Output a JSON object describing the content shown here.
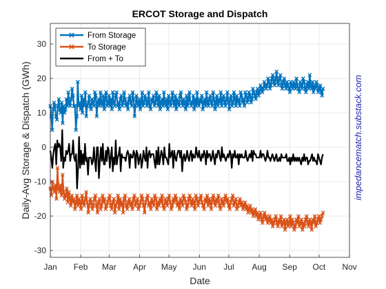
{
  "chart_data": {
    "type": "line",
    "title": "ERCOT Storage and Dispatch",
    "xlabel": "Date",
    "ylabel": "Daily-Avg Storage & Dispatch (GWh)",
    "side_label": "impedancematch.substack.com",
    "xlim": [
      "2024-01-01",
      "2024-11-01"
    ],
    "ylim": [
      -32,
      36
    ],
    "yticks": [
      -30,
      -20,
      -10,
      0,
      10,
      20,
      30
    ],
    "month_ticks": [
      {
        "label": "Jan",
        "date": "2024-01-01"
      },
      {
        "label": "Feb",
        "date": "2024-02-01"
      },
      {
        "label": "Mar",
        "date": "2024-03-01"
      },
      {
        "label": "Apr",
        "date": "2024-04-01"
      },
      {
        "label": "May",
        "date": "2024-05-01"
      },
      {
        "label": "Jun",
        "date": "2024-06-01"
      },
      {
        "label": "Jul",
        "date": "2024-07-01"
      },
      {
        "label": "Aug",
        "date": "2024-08-01"
      },
      {
        "label": "Sep",
        "date": "2024-09-01"
      },
      {
        "label": "Oct",
        "date": "2024-10-01"
      },
      {
        "label": "Nov",
        "date": "2024-11-01"
      }
    ],
    "grid": true,
    "legend_position": "top-left",
    "x_start": "2024-01-01",
    "x_end": "2024-10-05",
    "series": [
      {
        "name": "From Storage",
        "color": "#0072BD",
        "marker": "x",
        "values": [
          12,
          9,
          5,
          11,
          13,
          12,
          9,
          8,
          12,
          14,
          11,
          10,
          13,
          7,
          12,
          10,
          11,
          14,
          12,
          16,
          13,
          12,
          14,
          17,
          15,
          12,
          12,
          5,
          9,
          19,
          12,
          13,
          11,
          15,
          10,
          14,
          12,
          16,
          9,
          12,
          13,
          15,
          12,
          11,
          14,
          13,
          12,
          16,
          15,
          9,
          13,
          14,
          12,
          16,
          13,
          12,
          15,
          11,
          14,
          16,
          12,
          13,
          15,
          12,
          14,
          11,
          16,
          13,
          12,
          15,
          16,
          12,
          13,
          11,
          14,
          15,
          12,
          13,
          16,
          14,
          12,
          13,
          11,
          14,
          15,
          13,
          12,
          16,
          14,
          9,
          12,
          15,
          13,
          12,
          14,
          11,
          13,
          16,
          12,
          13,
          15,
          14,
          12,
          13,
          16,
          12,
          11,
          14,
          13,
          15,
          12,
          13,
          16,
          14,
          12,
          15,
          11,
          13,
          14,
          12,
          16,
          13,
          12,
          14,
          11,
          15,
          13,
          12,
          14,
          16,
          13,
          12,
          15,
          11,
          14,
          13,
          12,
          15,
          16,
          13,
          12,
          14,
          13,
          11,
          15,
          12,
          14,
          16,
          13,
          12,
          13,
          15,
          11,
          14,
          12,
          16,
          13,
          12,
          14,
          13,
          15,
          11,
          13,
          14,
          12,
          16,
          13,
          12,
          14,
          15,
          13,
          12,
          16,
          14,
          11,
          13,
          15,
          12,
          14,
          13,
          16,
          12,
          14,
          15,
          13,
          12,
          14,
          16,
          13,
          11,
          14,
          15,
          12,
          13,
          16,
          14,
          12,
          15,
          13,
          14,
          12,
          16,
          15,
          13,
          14,
          12,
          16,
          15,
          13,
          14,
          16,
          15,
          13,
          14,
          17,
          16,
          15,
          14,
          16,
          17,
          15,
          16,
          18,
          17,
          16,
          17,
          19,
          18,
          17,
          18,
          20,
          19,
          17,
          18,
          20,
          21,
          19,
          18,
          20,
          22,
          19,
          18,
          20,
          21,
          18,
          17,
          19,
          20,
          18,
          17,
          19,
          18,
          17,
          16,
          19,
          18,
          17,
          19,
          18,
          17,
          20,
          18,
          17,
          16,
          19,
          18,
          17,
          20,
          19,
          17,
          16,
          18,
          19,
          17,
          21,
          18,
          17,
          19,
          16,
          18,
          17,
          19,
          18,
          16,
          17,
          18,
          16,
          15,
          17
        ]
      },
      {
        "name": "To Storage",
        "color": "#D95319",
        "marker": "x",
        "values": [
          -12,
          -14,
          -10,
          -12,
          -13,
          -11,
          -15,
          -6,
          -12,
          -13,
          -11,
          -14,
          -8,
          -13,
          -15,
          -14,
          -12,
          -16,
          -13,
          -15,
          -17,
          -14,
          -16,
          -15,
          -18,
          -16,
          -14,
          -17,
          -15,
          -16,
          -18,
          -14,
          -16,
          -17,
          -15,
          -13,
          -16,
          -19,
          -17,
          -15,
          -16,
          -18,
          -17,
          -15,
          -14,
          -17,
          -19,
          -16,
          -15,
          -18,
          -17,
          -14,
          -16,
          -15,
          -18,
          -17,
          -16,
          -15,
          -14,
          -17,
          -18,
          -16,
          -15,
          -19,
          -17,
          -16,
          -14,
          -18,
          -15,
          -17,
          -16,
          -19,
          -15,
          -14,
          -17,
          -18,
          -16,
          -15,
          -17,
          -16,
          -18,
          -15,
          -14,
          -17,
          -16,
          -15,
          -18,
          -17,
          -16,
          -14,
          -15,
          -17,
          -19,
          -16,
          -15,
          -14,
          -17,
          -16,
          -18,
          -15,
          -16,
          -17,
          -14,
          -15,
          -18,
          -16,
          -17,
          -15,
          -16,
          -14,
          -17,
          -18,
          -15,
          -16,
          -17,
          -15,
          -14,
          -16,
          -18,
          -17,
          -15,
          -16,
          -14,
          -15,
          -17,
          -16,
          -18,
          -15,
          -16,
          -17,
          -14,
          -15,
          -16,
          -18,
          -17,
          -15,
          -14,
          -16,
          -17,
          -15,
          -16,
          -18,
          -14,
          -15,
          -17,
          -16,
          -15,
          -14,
          -16,
          -17,
          -18,
          -15,
          -16,
          -14,
          -17,
          -15,
          -16,
          -18,
          -15,
          -14,
          -16,
          -17,
          -15,
          -16,
          -14,
          -17,
          -18,
          -15,
          -16,
          -17,
          -15,
          -14,
          -16,
          -15,
          -17,
          -18,
          -16,
          -15,
          -14,
          -17,
          -16,
          -15,
          -18,
          -17,
          -16,
          -15,
          -17,
          -16,
          -18,
          -17,
          -16,
          -18,
          -17,
          -19,
          -18,
          -17,
          -19,
          -18,
          -20,
          -19,
          -18,
          -20,
          -19,
          -21,
          -20,
          -19,
          -21,
          -22,
          -20,
          -19,
          -21,
          -20,
          -22,
          -21,
          -20,
          -22,
          -21,
          -23,
          -22,
          -21,
          -20,
          -22,
          -23,
          -21,
          -22,
          -20,
          -23,
          -22,
          -21,
          -24,
          -22,
          -21,
          -23,
          -22,
          -20,
          -23,
          -21,
          -22,
          -24,
          -23,
          -21,
          -22,
          -20,
          -23,
          -22,
          -21,
          -24,
          -22,
          -23,
          -21,
          -20,
          -22,
          -23,
          -21,
          -22,
          -24,
          -21,
          -22,
          -20,
          -23,
          -22,
          -21,
          -20,
          -22,
          -21,
          -20,
          -19
        ]
      },
      {
        "name": "From + To",
        "color": "#000000",
        "marker": "none",
        "values": [
          -1,
          -3,
          -6,
          -2,
          0,
          1,
          -5,
          2,
          0,
          1,
          0,
          -4,
          5,
          -6,
          -3,
          -4,
          -1,
          -2,
          -1,
          1,
          -4,
          -2,
          -2,
          2,
          -3,
          -4,
          -2,
          -12,
          -6,
          3,
          -6,
          -1,
          -5,
          -2,
          -5,
          1,
          -4,
          -3,
          -8,
          -3,
          -3,
          -3,
          -5,
          -4,
          0,
          -4,
          -7,
          0,
          0,
          -9,
          -4,
          0,
          -4,
          1,
          -5,
          -5,
          -1,
          -4,
          0,
          -1,
          -6,
          -3,
          0,
          -7,
          -3,
          -5,
          2,
          -5,
          -3,
          -2,
          0,
          -7,
          -2,
          -3,
          -3,
          -3,
          -4,
          -2,
          -1,
          -2,
          -6,
          -2,
          -3,
          -3,
          -1,
          -2,
          -6,
          -1,
          -2,
          -5,
          -3,
          -2,
          -6,
          -4,
          -1,
          -3,
          -4,
          0,
          -6,
          -2,
          -1,
          -3,
          -2,
          -2,
          -2,
          -4,
          -6,
          -1,
          -5,
          0,
          -5,
          -3,
          -1,
          -2,
          -5,
          0,
          -3,
          -3,
          -4,
          -5,
          1,
          -3,
          -2,
          -1,
          -6,
          -1,
          -3,
          -4,
          -2,
          -1,
          -1,
          -3,
          -1,
          -7,
          -3,
          -2,
          -4,
          -3,
          -1,
          -3,
          -4,
          -2,
          -1,
          -4,
          -2,
          -3,
          -3,
          0,
          -2,
          -3,
          -1,
          -3,
          -4,
          -2,
          -3,
          -1,
          -2,
          -5,
          -1,
          -3,
          -2,
          -2,
          -4,
          -3,
          -1,
          -3,
          -5,
          -2,
          -3,
          -1,
          -1,
          -3,
          -4,
          0,
          -3,
          -2,
          -3,
          -4,
          -3,
          -2,
          -3,
          -1,
          -2,
          -6,
          -2,
          -3,
          -1,
          -3,
          -3,
          -2,
          -5,
          -2,
          -3,
          -2,
          -3,
          -3,
          -3,
          -1,
          -3,
          -4,
          -3,
          -2,
          -3,
          -1,
          -4,
          -1,
          -2,
          -2,
          -3,
          -3,
          -3,
          -3,
          -1,
          -3,
          -2,
          -2,
          -3,
          -4,
          -3,
          -1,
          -3,
          -3,
          -4,
          -3,
          -2,
          -3,
          -4,
          -3,
          -2,
          -4,
          -4,
          -3,
          -4,
          -2,
          -3,
          -3,
          -3,
          -3,
          -2,
          -4,
          -4,
          -3,
          -5,
          -3,
          -4,
          -2,
          -4,
          -3,
          -4,
          -3,
          -4,
          -3,
          -4,
          -5,
          -3,
          -4,
          -2,
          -4,
          -3,
          -3,
          -5,
          -4,
          -4,
          -3,
          -2,
          -4,
          -3,
          -4,
          -4,
          -5,
          -2,
          -3,
          -4,
          -5,
          -3,
          -2
        ]
      }
    ]
  }
}
